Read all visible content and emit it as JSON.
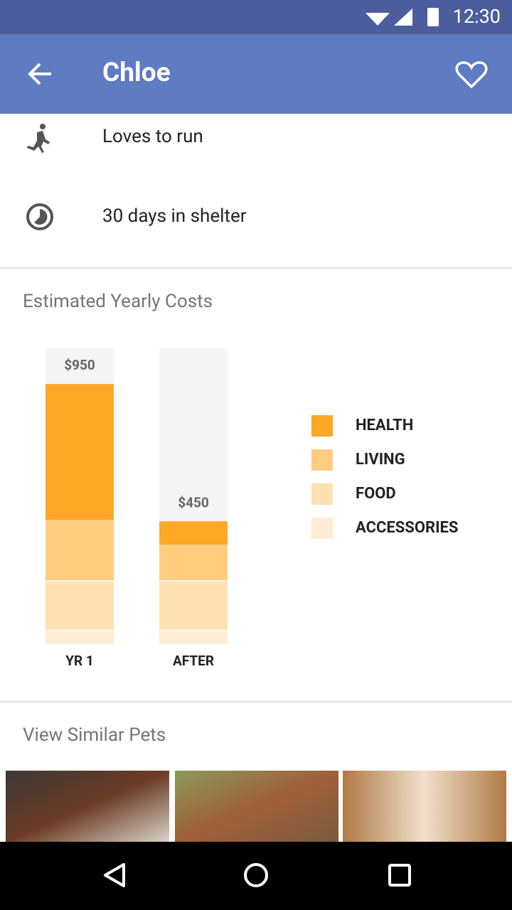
{
  "status_bar": {
    "time": "12:30"
  },
  "app_bar": {
    "title": "Chloe"
  },
  "traits": [
    "Loves to run",
    "30 days in shelter"
  ],
  "chart_data": {
    "type": "stacked_bar",
    "title": "Estimated Yearly Costs",
    "categories": [
      "YR 1",
      "AFTER"
    ],
    "series": [
      {
        "name": "HEALTH",
        "color": "#ffa726",
        "values": [
          495,
          85
        ]
      },
      {
        "name": "LIVING",
        "color": "#ffcc80",
        "values": [
          225,
          135
        ]
      },
      {
        "name": "FOOD",
        "color": "#ffe0b2",
        "values": [
          180,
          180
        ]
      },
      {
        "name": "ACCESSORIES",
        "color": "#ffecd2",
        "values": [
          50,
          50
        ]
      }
    ],
    "totals": [
      950,
      450
    ],
    "total_labels": [
      "$950",
      "$450"
    ],
    "ylim": [
      0,
      1080
    ],
    "background_color": "#f5f5f5"
  },
  "similar": {
    "title": "View Similar Pets"
  }
}
